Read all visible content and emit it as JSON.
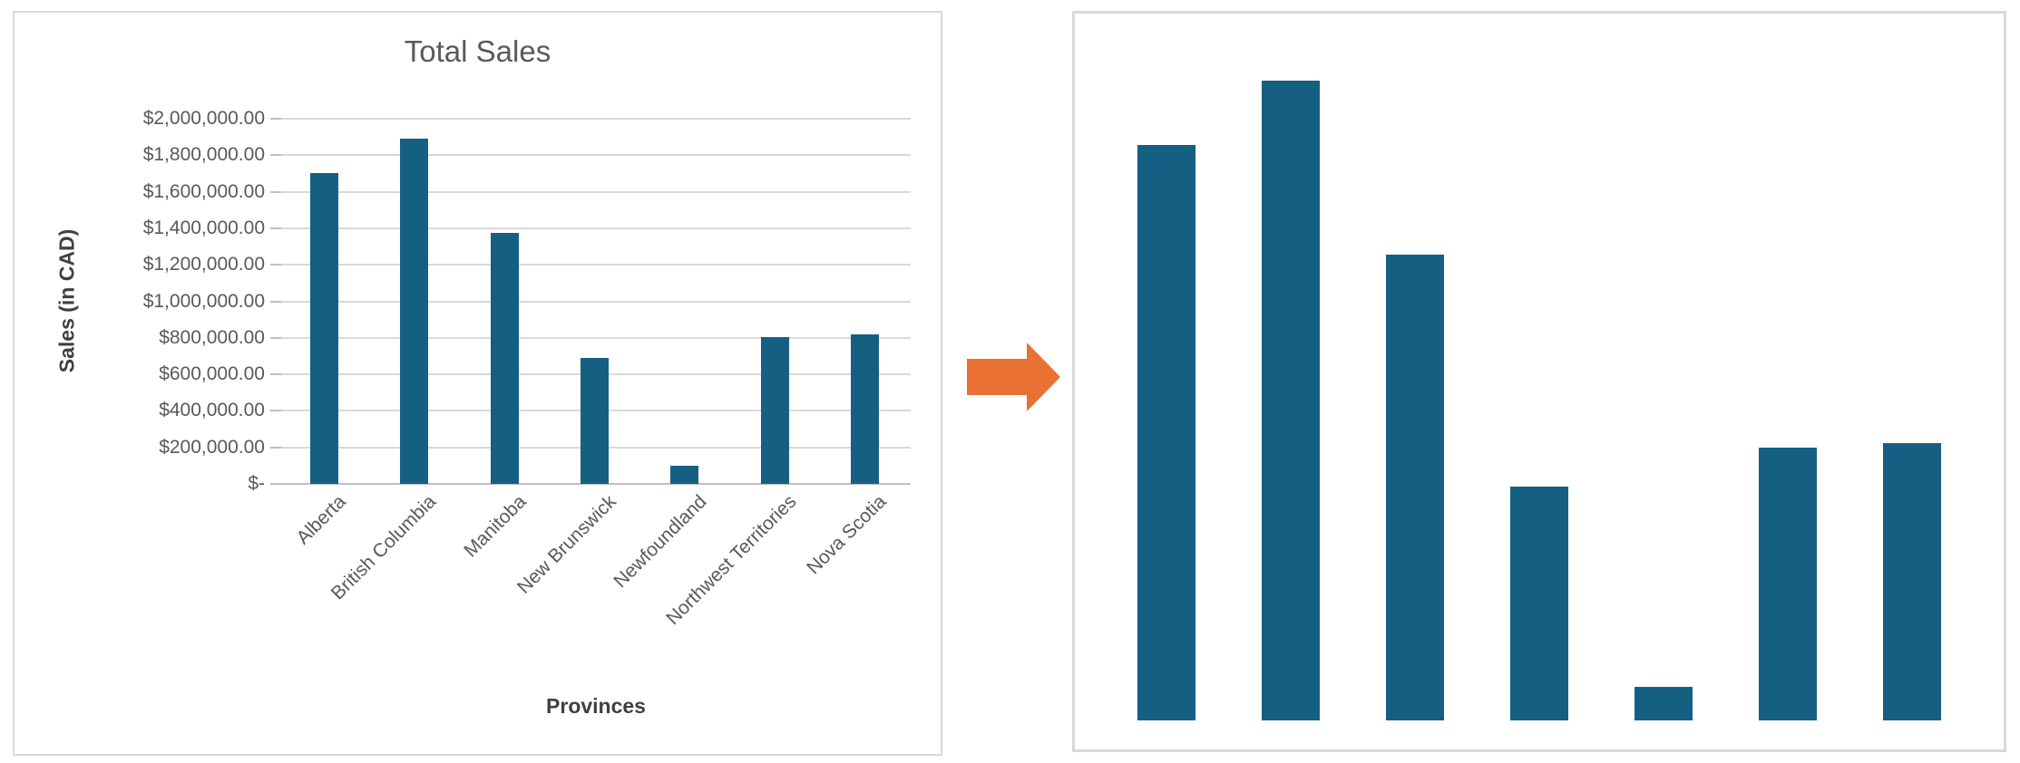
{
  "style": {
    "bar_color": "#156082",
    "arrow_color": "#E97132",
    "panel_border_color": "#D9D9D9",
    "gridline_color": "#D9D9D9",
    "axis_line_color": "#BFBFBF",
    "tick_text_color": "#595959",
    "title_text_color": "#595959",
    "axis_title_text_color": "#404040"
  },
  "chart_data": [
    {
      "type": "bar",
      "title": "Total Sales",
      "xlabel": "Provinces",
      "ylabel": "Sales (in CAD)",
      "categories": [
        "Alberta",
        "British Columbia",
        "Manitoba",
        "New Brunswick",
        "Newfoundland",
        "Northwest Territories",
        "Nova Scotia"
      ],
      "values": [
        1700000,
        1890000,
        1375000,
        690000,
        100000,
        805000,
        820000
      ],
      "ylim": [
        0,
        2000000
      ],
      "y_tick_step": 200000,
      "y_tick_format": "currency",
      "y_tick_labels": [
        "$2,000,000.00",
        "$1,800,000.00",
        "$1,600,000.00",
        "$1,400,000.00",
        "$1,200,000.00",
        "$1,000,000.00",
        "$800,000.00",
        "$600,000.00",
        "$400,000.00",
        "$200,000.00",
        "$-"
      ],
      "grid": true,
      "legend": false,
      "bar_color": "#156082",
      "category_label_rotation_deg": 45
    },
    {
      "type": "bar",
      "title": "",
      "categories": [
        "Alberta",
        "British Columbia",
        "Manitoba",
        "New Brunswick",
        "Newfoundland",
        "Northwest Territories",
        "Nova Scotia"
      ],
      "values": [
        1700000,
        1890000,
        1375000,
        690000,
        100000,
        805000,
        820000
      ],
      "grid": false,
      "legend": false,
      "axes_visible": false,
      "variant": "no-axes-no-labels",
      "bar_color": "#156082"
    }
  ]
}
